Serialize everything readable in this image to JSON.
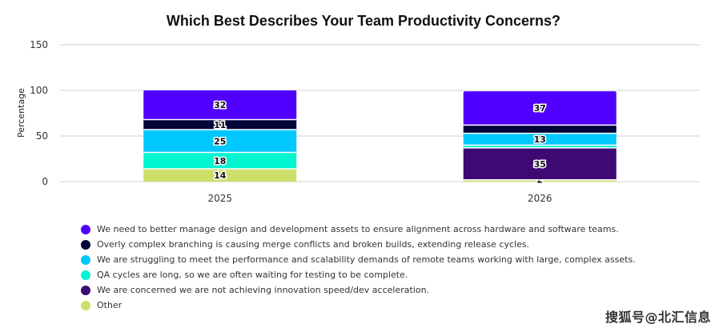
{
  "chart_data": {
    "type": "bar",
    "stacked": true,
    "title": "Which Best Describes Your Team Productivity Concerns?",
    "xlabel": "",
    "ylabel": "Percentage",
    "ylim": [
      0,
      150
    ],
    "yticks": [
      0,
      50,
      100,
      150
    ],
    "grid": true,
    "legend_position": "bottom-left",
    "categories": [
      "2025",
      "2026"
    ],
    "series": [
      {
        "name": "Other",
        "color": "#cddf6b",
        "values": [
          14,
          2
        ],
        "labels": [
          "14",
          "2"
        ]
      },
      {
        "name": "We are concerned we are not achieving innovation speed/dev acceleration.",
        "color": "#3d0a73",
        "values": [
          0,
          35
        ],
        "labels": [
          "",
          "35"
        ]
      },
      {
        "name": "QA cycles are long, so we are often waiting for testing to be complete.",
        "color": "#00f5d0",
        "values": [
          18,
          3
        ],
        "labels": [
          "18",
          ""
        ]
      },
      {
        "name": "We are struggling to meet the performance and scalability demands of remote teams working with large, complex assets.",
        "color": "#00c8ff",
        "values": [
          25,
          13
        ],
        "labels": [
          "25",
          "13"
        ]
      },
      {
        "name": "Overly complex branching is causing merge conflicts and broken builds, extending release cycles.",
        "color": "#00053a",
        "values": [
          11,
          9
        ],
        "labels": [
          "11",
          ""
        ]
      },
      {
        "name": "We need to better manage design and development assets to ensure alignment across hardware and software teams.",
        "color": "#5000ff",
        "values": [
          32,
          37
        ],
        "labels": [
          "32",
          "37"
        ]
      }
    ],
    "legend_order": [
      5,
      4,
      3,
      2,
      1,
      0
    ]
  },
  "watermark": "搜狐号@北汇信息"
}
